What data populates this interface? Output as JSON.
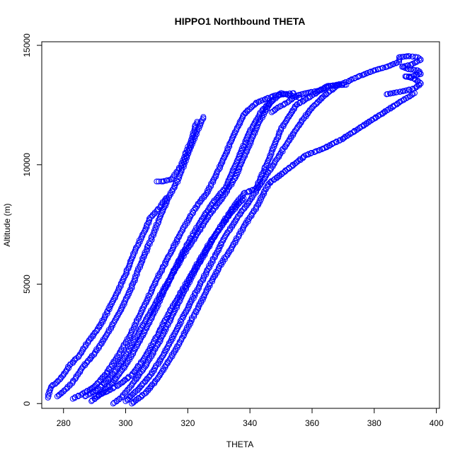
{
  "chart_data": {
    "type": "scatter",
    "title": "HIPPO1 Northbound THETA",
    "xlabel": "THETA",
    "ylabel": "Altitude (m)",
    "xlim": [
      273,
      401
    ],
    "ylim": [
      -200,
      15150
    ],
    "x_ticks": [
      280,
      300,
      320,
      340,
      360,
      380,
      400
    ],
    "y_ticks": [
      0,
      5000,
      10000,
      15000
    ],
    "grid": false,
    "legend": "none",
    "marker": "open-circle",
    "series": [
      {
        "color": "#0000ff",
        "points": [
          [
            275,
            250
          ],
          [
            276,
            700
          ],
          [
            278,
            900
          ],
          [
            280,
            1200
          ],
          [
            282,
            1600
          ],
          [
            285,
            2000
          ],
          [
            288,
            2600
          ],
          [
            292,
            3300
          ],
          [
            296,
            4300
          ],
          [
            300,
            5400
          ],
          [
            303,
            6400
          ],
          [
            306,
            7200
          ],
          [
            308,
            7800
          ],
          [
            311,
            8200
          ],
          [
            313,
            8600
          ],
          [
            278,
            300
          ],
          [
            280,
            500
          ],
          [
            283,
            900
          ],
          [
            286,
            1500
          ],
          [
            290,
            2100
          ],
          [
            294,
            2900
          ],
          [
            298,
            3800
          ],
          [
            302,
            4900
          ],
          [
            305,
            5900
          ],
          [
            308,
            6800
          ],
          [
            311,
            7800
          ],
          [
            314,
            8700
          ],
          [
            317,
            9400
          ],
          [
            321,
            10800
          ],
          [
            325,
            12000
          ],
          [
            283,
            200
          ],
          [
            286,
            400
          ],
          [
            290,
            700
          ],
          [
            294,
            1300
          ],
          [
            298,
            2100
          ],
          [
            302,
            3000
          ],
          [
            306,
            4100
          ],
          [
            310,
            5200
          ],
          [
            314,
            6200
          ],
          [
            318,
            7200
          ],
          [
            322,
            8100
          ],
          [
            326,
            8800
          ],
          [
            330,
            9800
          ],
          [
            334,
            11000
          ],
          [
            338,
            12100
          ],
          [
            342,
            12600
          ],
          [
            348,
            12900
          ],
          [
            354,
            13000
          ],
          [
            289,
            100
          ],
          [
            292,
            400
          ],
          [
            296,
            900
          ],
          [
            300,
            1600
          ],
          [
            304,
            2500
          ],
          [
            308,
            3500
          ],
          [
            312,
            4600
          ],
          [
            316,
            5700
          ],
          [
            320,
            6700
          ],
          [
            324,
            7600
          ],
          [
            328,
            8400
          ],
          [
            332,
            9000
          ],
          [
            336,
            10200
          ],
          [
            340,
            11400
          ],
          [
            344,
            12300
          ],
          [
            350,
            13000
          ],
          [
            356,
            12800
          ],
          [
            296,
            0
          ],
          [
            299,
            300
          ],
          [
            302,
            800
          ],
          [
            306,
            1500
          ],
          [
            310,
            2400
          ],
          [
            314,
            3400
          ],
          [
            318,
            4500
          ],
          [
            322,
            5500
          ],
          [
            326,
            6400
          ],
          [
            330,
            7300
          ],
          [
            334,
            8100
          ],
          [
            338,
            8800
          ],
          [
            342,
            9000
          ],
          [
            346,
            10200
          ],
          [
            350,
            11500
          ],
          [
            355,
            12500
          ],
          [
            360,
            12900
          ],
          [
            365,
            13300
          ],
          [
            371,
            13350
          ],
          [
            300,
            100
          ],
          [
            304,
            600
          ],
          [
            308,
            1200
          ],
          [
            312,
            2000
          ],
          [
            316,
            3000
          ],
          [
            320,
            4000
          ],
          [
            324,
            5000
          ],
          [
            328,
            6000
          ],
          [
            332,
            7000
          ],
          [
            336,
            7800
          ],
          [
            340,
            8500
          ],
          [
            344,
            9300
          ],
          [
            348,
            10100
          ],
          [
            352,
            10900
          ],
          [
            356,
            11700
          ],
          [
            360,
            12400
          ],
          [
            364,
            12900
          ],
          [
            368,
            13300
          ],
          [
            302,
            0
          ],
          [
            306,
            400
          ],
          [
            310,
            1000
          ],
          [
            314,
            1800
          ],
          [
            318,
            2700
          ],
          [
            322,
            3700
          ],
          [
            326,
            4700
          ],
          [
            330,
            5700
          ],
          [
            334,
            6500
          ],
          [
            338,
            7400
          ],
          [
            342,
            8200
          ],
          [
            346,
            9200
          ],
          [
            352,
            9800
          ],
          [
            358,
            10400
          ],
          [
            364,
            10700
          ],
          [
            370,
            11100
          ],
          [
            376,
            11600
          ],
          [
            382,
            12100
          ],
          [
            388,
            12600
          ],
          [
            393,
            13000
          ],
          [
            290,
            300
          ],
          [
            294,
            500
          ],
          [
            298,
            800
          ],
          [
            302,
            1200
          ],
          [
            306,
            1900
          ],
          [
            310,
            2800
          ],
          [
            314,
            3800
          ],
          [
            318,
            4700
          ],
          [
            322,
            5600
          ],
          [
            326,
            6500
          ],
          [
            330,
            7300
          ],
          [
            334,
            8000
          ],
          [
            338,
            8600
          ],
          [
            287,
            300
          ],
          [
            291,
            600
          ],
          [
            295,
            1100
          ],
          [
            299,
            1800
          ],
          [
            303,
            2700
          ],
          [
            307,
            3600
          ],
          [
            311,
            4500
          ],
          [
            315,
            5400
          ],
          [
            319,
            6300
          ],
          [
            323,
            7100
          ],
          [
            327,
            7900
          ],
          [
            331,
            8600
          ],
          [
            335,
            9400
          ],
          [
            339,
            10600
          ],
          [
            343,
            11800
          ],
          [
            347,
            12700
          ],
          [
            310,
            9300
          ],
          [
            312,
            9300
          ],
          [
            315,
            9400
          ],
          [
            318,
            10000
          ],
          [
            321,
            11000
          ],
          [
            323,
            11800
          ],
          [
            347,
            12200
          ],
          [
            349,
            12400
          ],
          [
            352,
            12600
          ],
          [
            355,
            12900
          ],
          [
            358,
            13000
          ],
          [
            362,
            13100
          ],
          [
            366,
            13300
          ],
          [
            370,
            13400
          ],
          [
            375,
            13700
          ],
          [
            380,
            13950
          ],
          [
            384,
            14100
          ],
          [
            386,
            14200
          ],
          [
            388,
            14300
          ],
          [
            388,
            14500
          ],
          [
            391,
            14550
          ],
          [
            394,
            14500
          ],
          [
            395,
            14400
          ],
          [
            392,
            14200
          ],
          [
            389,
            14100
          ],
          [
            391,
            14000
          ],
          [
            394,
            13950
          ],
          [
            395,
            13800
          ],
          [
            392,
            13700
          ],
          [
            390,
            13700
          ],
          [
            393,
            13600
          ],
          [
            395,
            13400
          ],
          [
            393,
            13200
          ],
          [
            390,
            13100
          ],
          [
            386,
            13000
          ],
          [
            384,
            12950
          ]
        ]
      }
    ]
  }
}
